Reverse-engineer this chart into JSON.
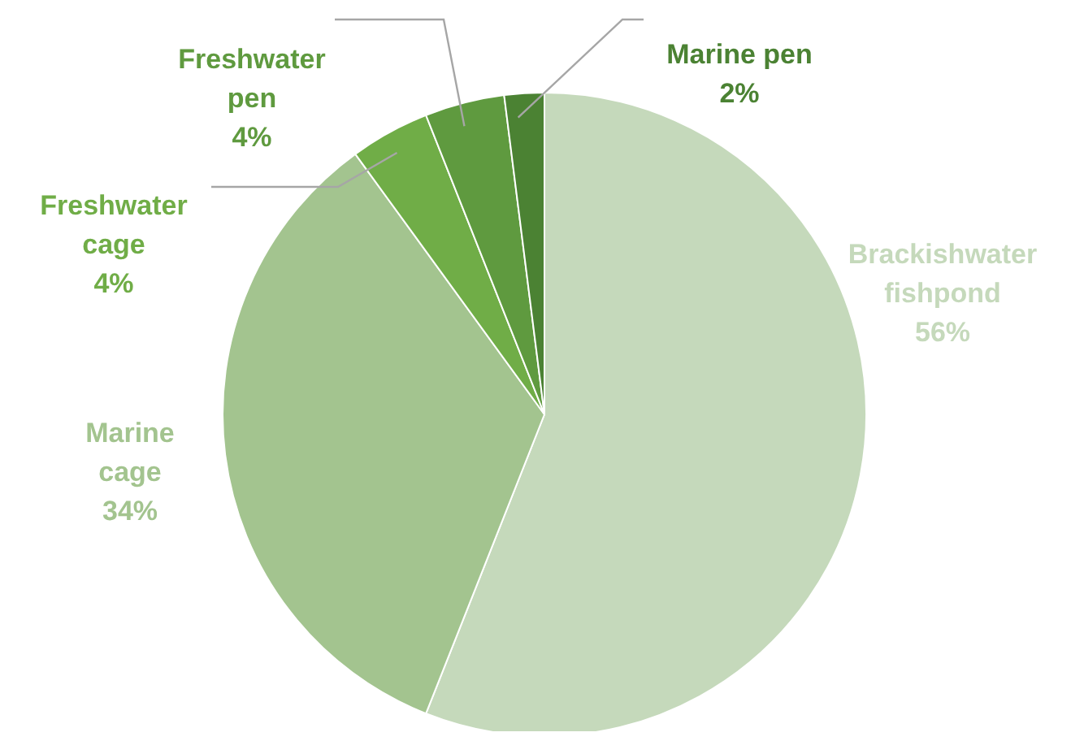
{
  "chart_data": {
    "type": "pie",
    "categories": [
      "Brackishwater fishpond",
      "Marine cage",
      "Freshwater cage",
      "Freshwater pen",
      "Marine pen"
    ],
    "values": [
      56,
      34,
      4,
      4,
      2
    ],
    "colors": [
      "#c5d9bb",
      "#a3c48f",
      "#70ad47",
      "#5f9a3f",
      "#4b8233"
    ],
    "value_labels": [
      "56%",
      "34%",
      "4%",
      "4%",
      "2%"
    ],
    "legend": false
  }
}
